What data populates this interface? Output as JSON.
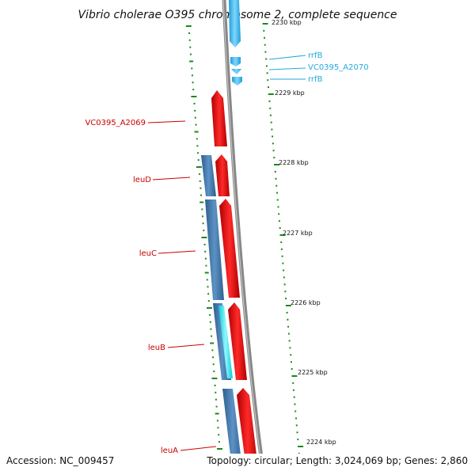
{
  "title": "Vibrio cholerae O395 chromosome 2, complete sequence",
  "footer": {
    "accession": "Accession: NC_009457",
    "topology": "Topology: circular; Length: 3,024,069 bp; Genes: 2,860"
  },
  "colors": {
    "forward_gene": "#ee1111",
    "reverse_gene": "#4a7fb5",
    "rna_gene": "#33bbee",
    "cds_highlight": "#22e5ee",
    "tick": "#1a8a1a",
    "backbone": "#888888",
    "label_red": "#cc0000",
    "label_cyan": "#22aadd"
  },
  "scale_ticks": [
    {
      "label": "2230 kbp"
    },
    {
      "label": "2229 kbp"
    },
    {
      "label": "2228 kbp"
    },
    {
      "label": "2227 kbp"
    },
    {
      "label": "2226 kbp"
    },
    {
      "label": "2225 kbp"
    },
    {
      "label": "2224 kbp"
    }
  ],
  "gene_labels_left": [
    {
      "text": "VC0395_A2069"
    },
    {
      "text": "leuD"
    },
    {
      "text": "leuC"
    },
    {
      "text": "leuB"
    },
    {
      "text": "leuA"
    }
  ],
  "gene_labels_right": [
    {
      "text": "rrfB"
    },
    {
      "text": "VC0395_A2070"
    },
    {
      "text": "rrfB"
    }
  ]
}
